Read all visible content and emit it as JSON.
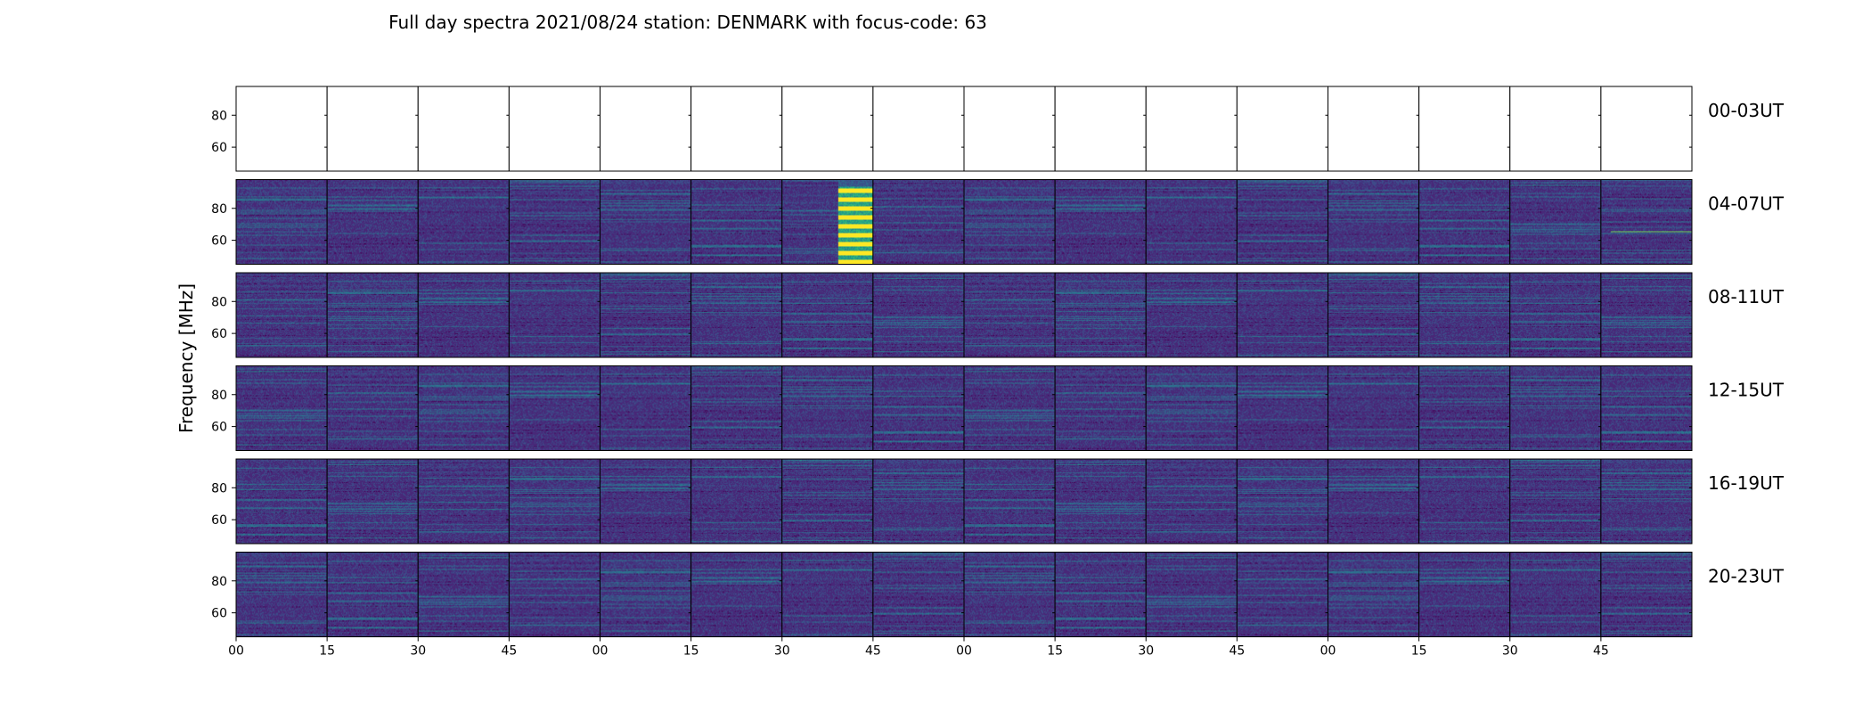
{
  "chart_data": {
    "type": "heatmap",
    "title": "Full day spectra 2021/08/24 station: DENMARK with focus-code: 63",
    "ylabel": "Frequency [MHz]",
    "xlabel": "",
    "y_ticks": [
      80,
      60
    ],
    "x_ticks": [
      "00",
      "15",
      "30",
      "45",
      "00",
      "15",
      "30",
      "45",
      "00",
      "15",
      "30",
      "45",
      "00",
      "15",
      "30",
      "45"
    ],
    "panels_per_row": 16,
    "colormap": [
      "#440154",
      "#482878",
      "#3e4a89",
      "#31688e",
      "#26828e",
      "#1f9e89",
      "#35b779",
      "#6ece58",
      "#b5de2b",
      "#fde725"
    ],
    "rows": [
      {
        "label": "00-03UT",
        "has_data": false
      },
      {
        "label": "04-07UT",
        "has_data": true
      },
      {
        "label": "08-11UT",
        "has_data": true
      },
      {
        "label": "12-15UT",
        "has_data": true
      },
      {
        "label": "16-19UT",
        "has_data": true
      },
      {
        "label": "20-23UT",
        "has_data": true
      }
    ]
  }
}
